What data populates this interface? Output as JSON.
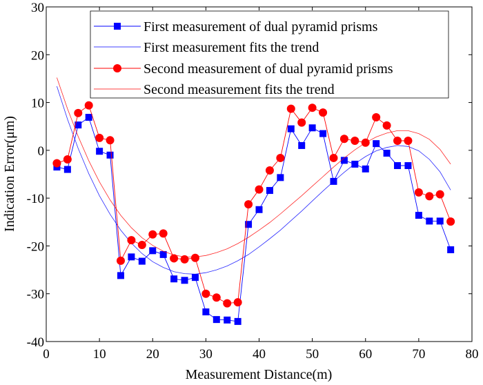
{
  "chart_data": {
    "type": "line",
    "xlabel": "Measurement Distance(m)",
    "ylabel": "Indication Error(μm)",
    "xlim": [
      0,
      80
    ],
    "ylim": [
      -40,
      30
    ],
    "xticks": [
      0,
      10,
      20,
      30,
      40,
      50,
      60,
      70,
      80
    ],
    "yticks": [
      -40,
      -30,
      -20,
      -10,
      0,
      10,
      20,
      30
    ],
    "grid": false,
    "legend_position": "top-center",
    "x": [
      2,
      4,
      6,
      8,
      10,
      12,
      14,
      16,
      18,
      20,
      22,
      24,
      26,
      28,
      30,
      32,
      34,
      36,
      38,
      40,
      42,
      44,
      46,
      48,
      50,
      52,
      54,
      56,
      58,
      60,
      62,
      64,
      66,
      68,
      70,
      72,
      74,
      76
    ],
    "series": [
      {
        "name": "First measurement of dual pyramid prisms",
        "kind": "markers-line",
        "marker": "square",
        "color": "#0000ff",
        "values": [
          -3.5,
          -4,
          5.3,
          6.9,
          -0.2,
          -1,
          -26.2,
          -22.3,
          -23.2,
          -21,
          -21.8,
          -26.9,
          -27.2,
          -26.6,
          -33.8,
          -35.4,
          -35.5,
          -35.8,
          -15.5,
          -12.4,
          -8.4,
          -5.7,
          4.5,
          1,
          4.7,
          3.5,
          -6.5,
          -2.1,
          -2.9,
          -3.9,
          1.4,
          -0.6,
          -3.2,
          -3.2,
          -13.6,
          -14.8,
          -14.8,
          -20.8
        ]
      },
      {
        "name": "First measurement fits the trend",
        "kind": "fit-line",
        "color": "#0000ff",
        "values": [
          13.4,
          6.5,
          0.4,
          -4.9,
          -9.5,
          -13.4,
          -16.7,
          -19.4,
          -21.6,
          -23.3,
          -24.5,
          -25.4,
          -25.8,
          -25.9,
          -25.6,
          -25.0,
          -24.2,
          -23.1,
          -21.8,
          -20.2,
          -18.5,
          -16.7,
          -14.7,
          -12.7,
          -10.6,
          -8.5,
          -6.5,
          -4.6,
          -2.8,
          -1.3,
          -0.1,
          0.6,
          1.0,
          0.8,
          -0.1,
          -1.9,
          -4.5,
          -8.3
        ]
      },
      {
        "name": "Second measurement of dual pyramid prisms",
        "kind": "markers-line",
        "marker": "circle",
        "color": "#ff0000",
        "values": [
          -2.7,
          -1.9,
          7.8,
          9.4,
          2.6,
          2.1,
          -23.1,
          -18.8,
          -19.8,
          -17.6,
          -17.4,
          -22.6,
          -22.8,
          -22.5,
          -30,
          -30.8,
          -32,
          -31.8,
          -11.3,
          -8.2,
          -4.2,
          -1.6,
          8.7,
          5.8,
          8.9,
          7.9,
          -1.6,
          2.4,
          2,
          1.6,
          6.9,
          5.2,
          2,
          2,
          -8.8,
          -9.6,
          -9.2,
          -14.9
        ]
      },
      {
        "name": "Second measurement fits the trend",
        "kind": "fit-line",
        "color": "#ff0000",
        "values": [
          15.2,
          8.7,
          2.9,
          -2.2,
          -6.6,
          -10.4,
          -13.6,
          -16.2,
          -18.3,
          -19.9,
          -21.1,
          -21.9,
          -22.3,
          -22.3,
          -22.0,
          -21.4,
          -20.6,
          -19.5,
          -18.2,
          -16.7,
          -15.1,
          -13.3,
          -11.4,
          -9.5,
          -7.5,
          -5.5,
          -3.5,
          -1.6,
          0.1,
          1.6,
          2.8,
          3.6,
          4.1,
          4.1,
          3.5,
          2.3,
          0.2,
          -2.9
        ]
      }
    ]
  }
}
